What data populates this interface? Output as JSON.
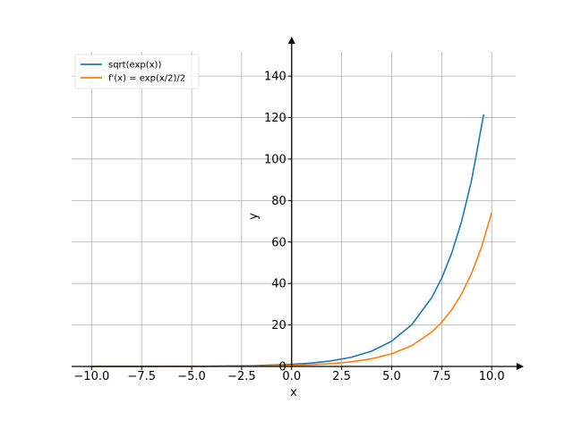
{
  "chart_data": {
    "type": "line",
    "title": "",
    "xlabel": "x",
    "ylabel": "y",
    "xlim": [
      -11,
      11.2
    ],
    "ylim": [
      0,
      156
    ],
    "xticks": [
      -10.0,
      -7.5,
      -5.0,
      -2.5,
      0.0,
      2.5,
      5.0,
      7.5,
      10.0
    ],
    "xtick_labels": [
      "−10.0",
      "−7.5",
      "−5.0",
      "−2.5",
      "0.0",
      "2.5",
      "5.0",
      "7.5",
      "10.0"
    ],
    "yticks": [
      0,
      20,
      40,
      60,
      80,
      100,
      120,
      140
    ],
    "ytick_labels": [
      "0",
      "20",
      "40",
      "60",
      "80",
      "100",
      "120",
      "140"
    ],
    "grid": true,
    "spines": "centered-with-arrows",
    "legend_position": "top-left",
    "series": [
      {
        "name": "sqrt(exp(x))",
        "color": "#1f77b4",
        "x": [
          -10,
          -8,
          -6,
          -4,
          -2,
          0,
          1,
          2,
          3,
          4,
          5,
          6,
          7,
          7.5,
          8,
          8.5,
          9,
          9.6
        ],
        "y": [
          0.0067,
          0.018,
          0.05,
          0.135,
          0.368,
          1.0,
          1.65,
          2.72,
          4.48,
          7.39,
          12.18,
          20.09,
          33.12,
          42.52,
          54.6,
          70.11,
          90.02,
          121.51
        ]
      },
      {
        "name": "f'(x) = exp(x/2)/2",
        "color": "#ff7f0e",
        "x": [
          -10,
          -8,
          -6,
          -4,
          -2,
          0,
          1,
          2,
          3,
          4,
          5,
          6,
          7,
          7.5,
          8,
          8.5,
          9,
          9.5,
          10
        ],
        "y": [
          0.0034,
          0.009,
          0.025,
          0.068,
          0.184,
          0.5,
          0.82,
          1.36,
          2.24,
          3.69,
          6.09,
          10.04,
          16.56,
          21.26,
          27.3,
          35.05,
          45.01,
          57.79,
          74.21
        ]
      }
    ]
  }
}
